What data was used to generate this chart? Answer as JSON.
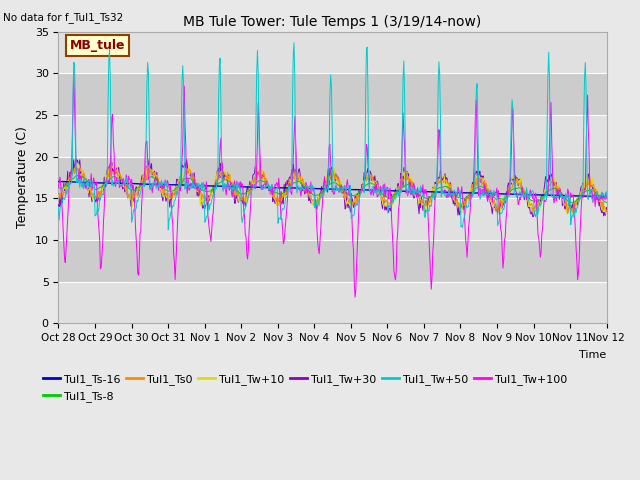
{
  "title": "MB Tule Tower: Tule Temps 1 (3/19/14-now)",
  "no_data_text": "No data for f_Tul1_Ts32",
  "ylabel": "Temperature (C)",
  "xlabel": "Time",
  "ylim": [
    0,
    35
  ],
  "n_days": 15,
  "x_tick_labels": [
    "Oct 28",
    "Oct 29",
    "Oct 30",
    "Oct 31",
    "Nov 1",
    "Nov 2",
    "Nov 3",
    "Nov 4",
    "Nov 5",
    "Nov 6",
    "Nov 7",
    "Nov 8",
    "Nov 9",
    "Nov 10",
    "Nov 11",
    "Nov 12"
  ],
  "legend_label": "MB_tule",
  "series_colors": {
    "Tul1_Ts-16": "#0000cc",
    "Tul1_Ts-8": "#00cc00",
    "Tul1_Ts0": "#ff8800",
    "Tul1_Tw+10": "#dddd00",
    "Tul1_Tw+30": "#8800cc",
    "Tul1_Tw+50": "#00cccc",
    "Tul1_Tw+100": "#ff00ff"
  },
  "bg_color": "#e8e8e8",
  "plot_bg_light": "#e0e0e0",
  "plot_bg_dark": "#cccccc",
  "grid_color": "#ffffff",
  "figsize": [
    6.4,
    4.8
  ],
  "dpi": 100
}
